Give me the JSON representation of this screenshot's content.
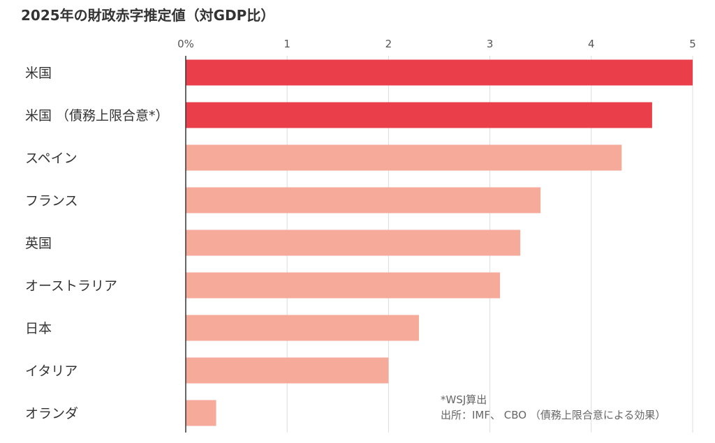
{
  "chart_data": {
    "type": "bar",
    "orientation": "horizontal",
    "title": "2025年の財政赤字推定値（対GDP比）",
    "categories": [
      "米国",
      "米国 （債務上限合意*）",
      "スペイン",
      "フランス",
      "英国",
      "オーストラリア",
      "日本",
      "イタリア",
      "オランダ"
    ],
    "values": [
      5.0,
      4.6,
      4.3,
      3.5,
      3.3,
      3.1,
      2.3,
      2.0,
      0.3
    ],
    "highlight": [
      true,
      true,
      false,
      false,
      false,
      false,
      false,
      false,
      false
    ],
    "xlim": [
      0,
      5
    ],
    "xticks": [
      "0%",
      "1",
      "2",
      "3",
      "4",
      "5"
    ],
    "grid": true,
    "colors": {
      "highlight": "#ea3f4a",
      "normal": "#f6aa99",
      "grid": "#dddddd",
      "axis": "#333333"
    },
    "notes": [
      "*WSJ算出",
      "出所：IMF、 CBO （債務上限合意による効果）"
    ]
  }
}
